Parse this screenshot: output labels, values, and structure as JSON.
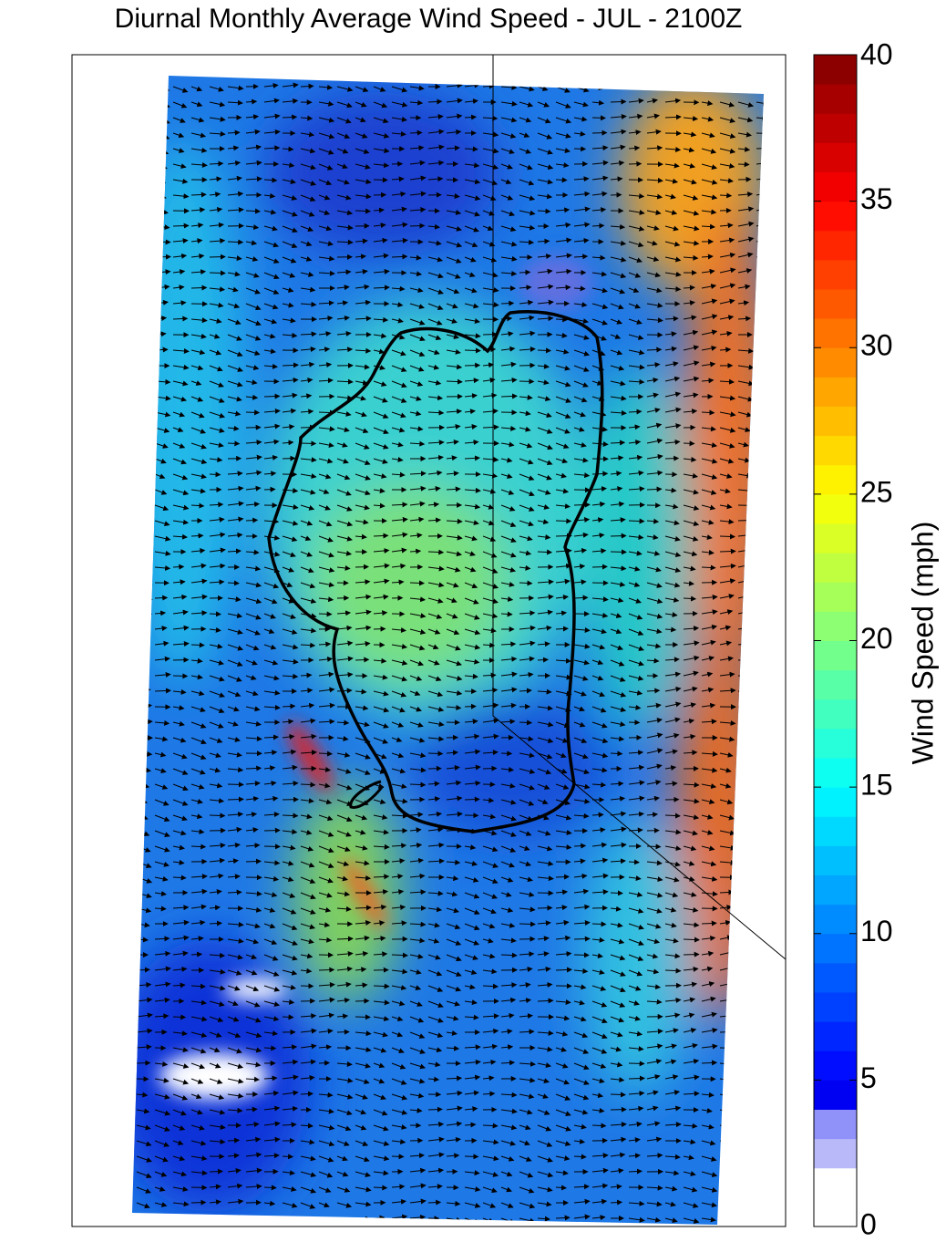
{
  "title": "Diurnal Monthly Average Wind Speed - JUL - 2100Z",
  "colorbar": {
    "label": "Wind Speed (mph)",
    "lim": [
      0,
      40
    ],
    "ticks": [
      0,
      5,
      10,
      15,
      20,
      25,
      30,
      35,
      40
    ]
  }
}
